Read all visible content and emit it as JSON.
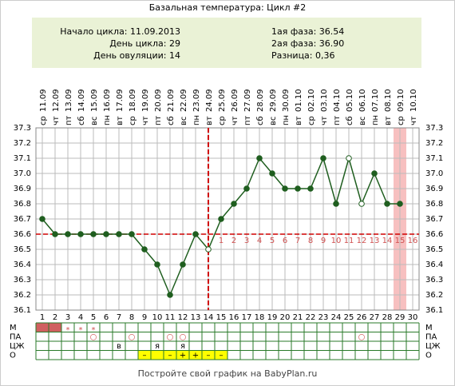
{
  "chart_data": {
    "type": "line",
    "title": "Базальная температура: Цикл #2",
    "info_left": [
      "Начало цикла: 11.09.2013",
      "День цикла: 29",
      "День овуляции: 14"
    ],
    "info_right": [
      "1ая фаза: 36.54",
      "2ая фаза: 36.90",
      "Разница: 0,36"
    ],
    "x": [
      1,
      2,
      3,
      4,
      5,
      6,
      7,
      8,
      9,
      10,
      11,
      12,
      13,
      14,
      15,
      16,
      17,
      18,
      19,
      20,
      21,
      22,
      23,
      24,
      25,
      26,
      27,
      28,
      29,
      30
    ],
    "dates": [
      "11.09",
      "12.09",
      "13.09",
      "14.09",
      "15.09",
      "16.09",
      "17.09",
      "18.09",
      "19.09",
      "20.09",
      "21.09",
      "22.09",
      "23.09",
      "24.09",
      "25.09",
      "26.09",
      "27.09",
      "28.09",
      "29.09",
      "30.09",
      "01.10",
      "02.10",
      "03.10",
      "04.10",
      "05.10",
      "06.10",
      "07.10",
      "08.10",
      "09.10",
      "10.10"
    ],
    "weekdays": [
      "ср",
      "чт",
      "пт",
      "сб",
      "вс",
      "пн",
      "вт",
      "ср",
      "чт",
      "пт",
      "сб",
      "вс",
      "пн",
      "вт",
      "ср",
      "чт",
      "пт",
      "сб",
      "вс",
      "пн",
      "вт",
      "ср",
      "чт",
      "пт",
      "сб",
      "вс",
      "пн",
      "вт",
      "ср",
      "чт"
    ],
    "series": [
      {
        "name": "Температура",
        "color": "#1f5e1f",
        "values": [
          36.7,
          36.6,
          36.6,
          36.6,
          36.6,
          36.6,
          36.6,
          36.6,
          36.5,
          36.4,
          36.2,
          36.4,
          36.6,
          36.5,
          36.7,
          36.8,
          36.9,
          37.1,
          37.0,
          36.9,
          36.9,
          36.9,
          37.1,
          36.8,
          37.1,
          36.8,
          37.0,
          36.8,
          36.8,
          null
        ]
      }
    ],
    "hollow_days": [
      14,
      25,
      26
    ],
    "ylim": [
      36.1,
      37.3
    ],
    "yticks": [
      36.1,
      36.2,
      36.3,
      36.4,
      36.5,
      36.6,
      36.7,
      36.8,
      36.9,
      {
        "value": 37,
        "label": "37.0"
      },
      37.1,
      37.2,
      37.3
    ],
    "coverline": 36.6,
    "ovulation_day": 14,
    "phase_days": [
      1,
      2,
      3,
      4,
      5,
      6,
      7,
      8,
      9,
      10,
      11,
      12,
      13,
      14,
      15,
      16
    ],
    "current_day": 29,
    "rows": [
      {
        "label": "М",
        "fill_days": [
          1,
          2
        ],
        "fill": "#d06060",
        "cells": [
          null,
          null,
          "*",
          "*",
          "*",
          null,
          null,
          null,
          null,
          null,
          null,
          null,
          null,
          null,
          null,
          null,
          null,
          null,
          null,
          null,
          null,
          null,
          null,
          null,
          null,
          null,
          null,
          null,
          null,
          null
        ]
      },
      {
        "label": "ПА",
        "cells": [
          null,
          null,
          null,
          null,
          "○",
          null,
          null,
          "○",
          null,
          null,
          "○",
          "○",
          null,
          null,
          null,
          null,
          null,
          null,
          null,
          null,
          null,
          null,
          null,
          null,
          null,
          "○",
          null,
          null,
          null,
          null
        ]
      },
      {
        "label": "ЦЖ",
        "cells": [
          null,
          null,
          null,
          null,
          null,
          null,
          "в",
          null,
          null,
          "я",
          null,
          "я",
          null,
          null,
          null,
          null,
          null,
          null,
          null,
          null,
          null,
          null,
          null,
          null,
          null,
          null,
          null,
          null,
          null,
          null
        ]
      },
      {
        "label": "О",
        "fill_days": [
          9,
          10,
          11,
          12,
          13,
          14,
          15
        ],
        "fill": "#ffff00",
        "cells": [
          null,
          null,
          null,
          null,
          null,
          null,
          null,
          null,
          "–",
          null,
          "–",
          "+",
          "+",
          "–",
          "–",
          null,
          null,
          null,
          null,
          null,
          null,
          null,
          null,
          null,
          null,
          null,
          null,
          null,
          null,
          null
        ]
      }
    ],
    "footer": "Постройте свой график на BabyPlan.ru"
  }
}
